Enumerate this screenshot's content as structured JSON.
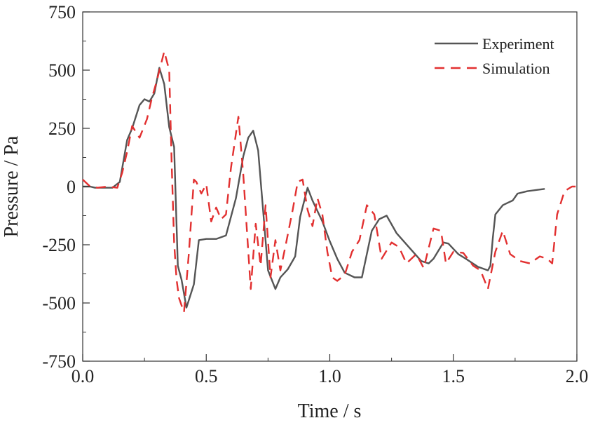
{
  "chart_data": {
    "type": "line",
    "title": "",
    "xlabel": "Time / s",
    "ylabel": "Pressure / Pa",
    "xlim": [
      0.0,
      2.0
    ],
    "ylim": [
      -750,
      750
    ],
    "xticks": [
      0.0,
      0.5,
      1.0,
      1.5,
      2.0
    ],
    "xtick_labels": [
      "0.0",
      "0.5",
      "1.0",
      "1.5",
      "2.0"
    ],
    "yticks": [
      -750,
      -500,
      -250,
      0,
      250,
      500,
      750
    ],
    "ytick_labels": [
      "-750",
      "-500",
      "-250",
      "0",
      "250",
      "500",
      "750"
    ],
    "grid": false,
    "legend": "top-right",
    "series": [
      {
        "name": "Experiment",
        "color": "#555555",
        "dash": "solid",
        "x": [
          0.0,
          0.03,
          0.05,
          0.08,
          0.12,
          0.15,
          0.18,
          0.2,
          0.23,
          0.25,
          0.27,
          0.29,
          0.31,
          0.33,
          0.35,
          0.37,
          0.385,
          0.4,
          0.42,
          0.45,
          0.47,
          0.5,
          0.54,
          0.58,
          0.62,
          0.65,
          0.67,
          0.69,
          0.71,
          0.73,
          0.75,
          0.78,
          0.8,
          0.83,
          0.86,
          0.88,
          0.91,
          0.93,
          0.97,
          1.0,
          1.03,
          1.06,
          1.1,
          1.13,
          1.17,
          1.2,
          1.23,
          1.27,
          1.32,
          1.37,
          1.4,
          1.42,
          1.46,
          1.48,
          1.52,
          1.55,
          1.6,
          1.64,
          1.65,
          1.66,
          1.67,
          1.7,
          1.72,
          1.74,
          1.76,
          1.8,
          1.87
        ],
        "y": [
          0,
          0,
          -5,
          -5,
          -5,
          20,
          200,
          250,
          350,
          375,
          365,
          400,
          510,
          440,
          255,
          170,
          -340,
          -400,
          -520,
          -420,
          -230,
          -225,
          -225,
          -210,
          -50,
          130,
          210,
          240,
          155,
          -100,
          -360,
          -440,
          -390,
          -355,
          -300,
          -130,
          -5,
          -60,
          -150,
          -235,
          -310,
          -370,
          -390,
          -390,
          -190,
          -140,
          -125,
          -200,
          -260,
          -320,
          -330,
          -310,
          -240,
          -245,
          -290,
          -310,
          -345,
          -360,
          -340,
          -220,
          -120,
          -80,
          -70,
          -60,
          -30,
          -20,
          -10
        ]
      },
      {
        "name": "Simulation",
        "color": "#e23030",
        "dash": "dashed",
        "x": [
          0.0,
          0.03,
          0.06,
          0.1,
          0.14,
          0.16,
          0.18,
          0.2,
          0.23,
          0.26,
          0.28,
          0.3,
          0.33,
          0.35,
          0.36,
          0.37,
          0.38,
          0.39,
          0.41,
          0.43,
          0.45,
          0.46,
          0.48,
          0.5,
          0.52,
          0.54,
          0.56,
          0.58,
          0.6,
          0.63,
          0.65,
          0.68,
          0.7,
          0.72,
          0.74,
          0.76,
          0.78,
          0.8,
          0.82,
          0.85,
          0.87,
          0.89,
          0.91,
          0.93,
          0.95,
          0.97,
          0.99,
          1.01,
          1.03,
          1.06,
          1.09,
          1.12,
          1.15,
          1.18,
          1.21,
          1.25,
          1.28,
          1.31,
          1.35,
          1.38,
          1.42,
          1.45,
          1.47,
          1.5,
          1.54,
          1.58,
          1.61,
          1.64,
          1.67,
          1.7,
          1.73,
          1.77,
          1.81,
          1.85,
          1.88,
          1.9,
          1.92,
          1.95,
          1.98,
          2.0
        ],
        "y": [
          30,
          0,
          -5,
          0,
          -5,
          60,
          150,
          260,
          210,
          290,
          380,
          455,
          580,
          500,
          100,
          -240,
          -400,
          -480,
          -540,
          -280,
          30,
          20,
          -30,
          10,
          -150,
          -90,
          -140,
          -120,
          80,
          300,
          50,
          -440,
          -160,
          -340,
          -80,
          -390,
          -230,
          -360,
          -260,
          -100,
          20,
          30,
          -100,
          -170,
          -50,
          -120,
          -280,
          -390,
          -405,
          -380,
          -280,
          -230,
          -80,
          -120,
          -310,
          -240,
          -260,
          -330,
          -290,
          -350,
          -180,
          -190,
          -330,
          -280,
          -285,
          -340,
          -360,
          -440,
          -280,
          -190,
          -290,
          -320,
          -330,
          -300,
          -310,
          -330,
          -120,
          -20,
          0,
          0
        ]
      }
    ]
  }
}
